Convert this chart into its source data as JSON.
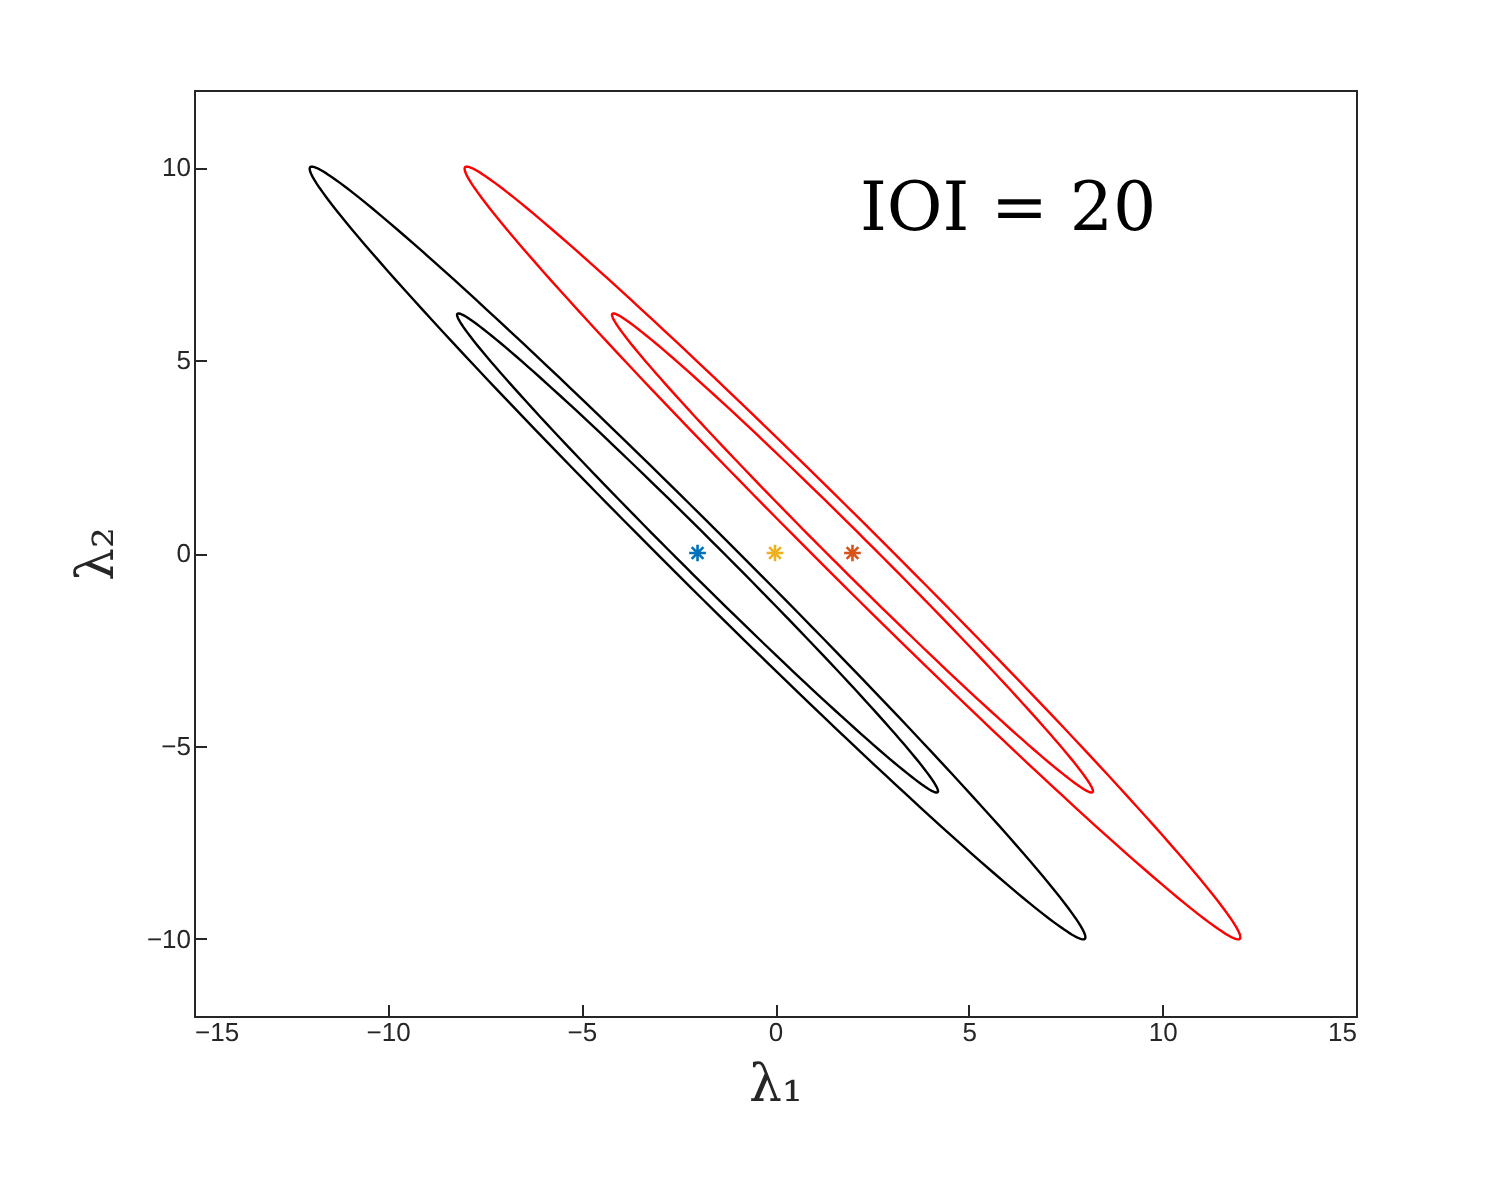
{
  "chart_data": {
    "type": "scatter",
    "xlabel": "λ₁",
    "ylabel": "λ₂",
    "xlim": [
      -15,
      15
    ],
    "ylim": [
      -12,
      12
    ],
    "xticks": [
      -15,
      -10,
      -5,
      0,
      5,
      10,
      15
    ],
    "yticks": [
      -10,
      -5,
      0,
      5,
      10
    ],
    "grid": false,
    "marker": "cross",
    "annotations": [
      "IOI = 20"
    ],
    "series": [
      {
        "color": "#0072bd",
        "x": [
          -2
        ],
        "values": [
          0
        ]
      },
      {
        "color": "#edb120",
        "x": [
          0
        ],
        "values": [
          0
        ]
      },
      {
        "color": "#d95319",
        "x": [
          2
        ],
        "values": [
          0
        ]
      }
    ]
  }
}
